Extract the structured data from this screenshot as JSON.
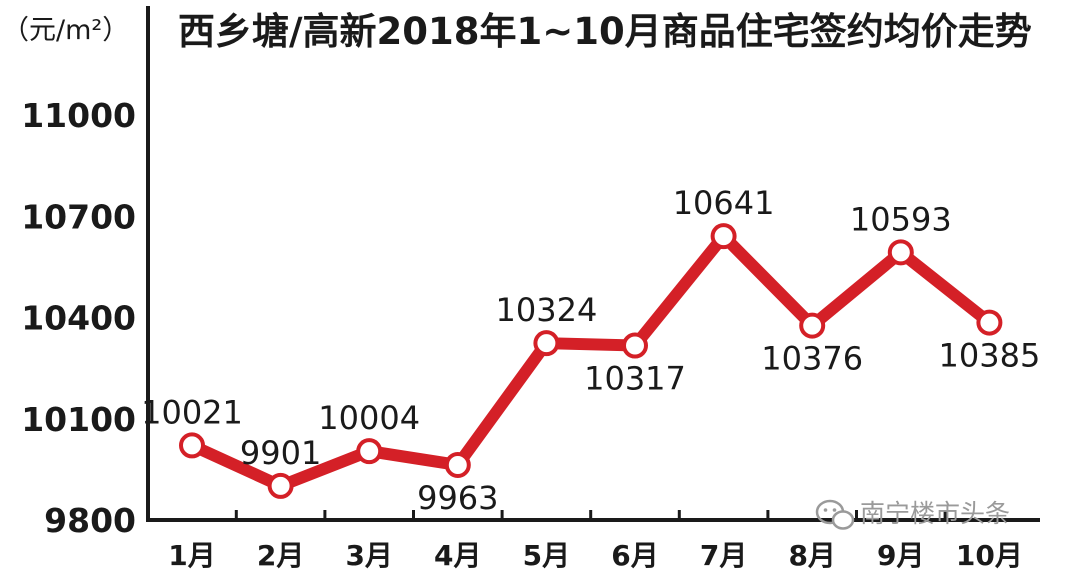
{
  "header": {
    "unit_label": "（元/m²）",
    "title": "西乡塘/高新2018年1~10月商品住宅签约均价走势"
  },
  "watermark": {
    "text": "南宁楼市头条",
    "icon": "wechat-icon"
  },
  "colors": {
    "line": "#d42027",
    "marker_fill": "#ffffff",
    "axis": "#1a1a1a"
  },
  "chart_data": {
    "type": "line",
    "title": "西乡塘/高新2018年1~10月商品住宅签约均价走势",
    "ylabel": "（元/m²）",
    "xlabel": "",
    "categories": [
      "1月",
      "2月",
      "3月",
      "4月",
      "5月",
      "6月",
      "7月",
      "8月",
      "9月",
      "10月"
    ],
    "series": [
      {
        "values": [
          10021,
          9901,
          10004,
          9963,
          10324,
          10317,
          10641,
          10376,
          10593,
          10385
        ],
        "labels": [
          "10021",
          "9901",
          "10004",
          "9963",
          "10324",
          "10317",
          "10641",
          "10376",
          "10593",
          "10385"
        ],
        "label_sides": [
          "above",
          "above",
          "above",
          "below",
          "above",
          "below",
          "above",
          "below",
          "above",
          "below"
        ]
      }
    ],
    "yticks": [
      "9800",
      "10100",
      "10400",
      "10700",
      "11000"
    ],
    "ylim": [
      9800,
      11000
    ],
    "grid": false,
    "legend": "none",
    "markers": "hollow-circle"
  }
}
